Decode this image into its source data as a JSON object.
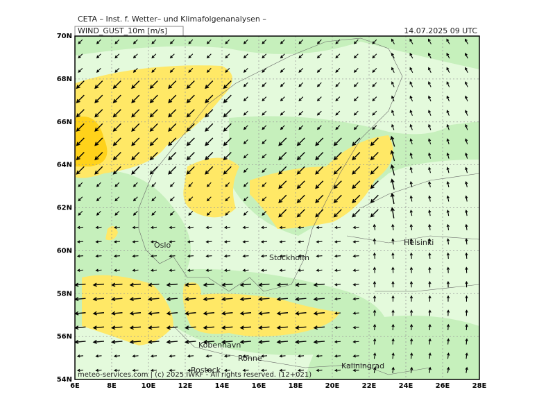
{
  "header": {
    "title": "CETA – Inst. f. Wetter– und Klimafolgenanalysen –",
    "field": "WIND_GUST_10m [m/s]",
    "datetime": "14.07.2025 09 UTC"
  },
  "axes": {
    "x_labels": [
      "6E",
      "8E",
      "10E",
      "12E",
      "14E",
      "16E",
      "18E",
      "20E",
      "22E",
      "24E",
      "26E",
      "28E"
    ],
    "y_labels": [
      "54N",
      "56N",
      "58N",
      "60N",
      "62N",
      "64N",
      "66N",
      "68N",
      "70N"
    ]
  },
  "places": [
    "Oslo",
    "Stockholm",
    "Helsinki",
    "Kobenhavn",
    "Ronne",
    "Rostock",
    "Kaliningrad"
  ],
  "footer": "meteo-services.com | (c) 2025 IWKF - All rights reserved. (12+021)"
}
